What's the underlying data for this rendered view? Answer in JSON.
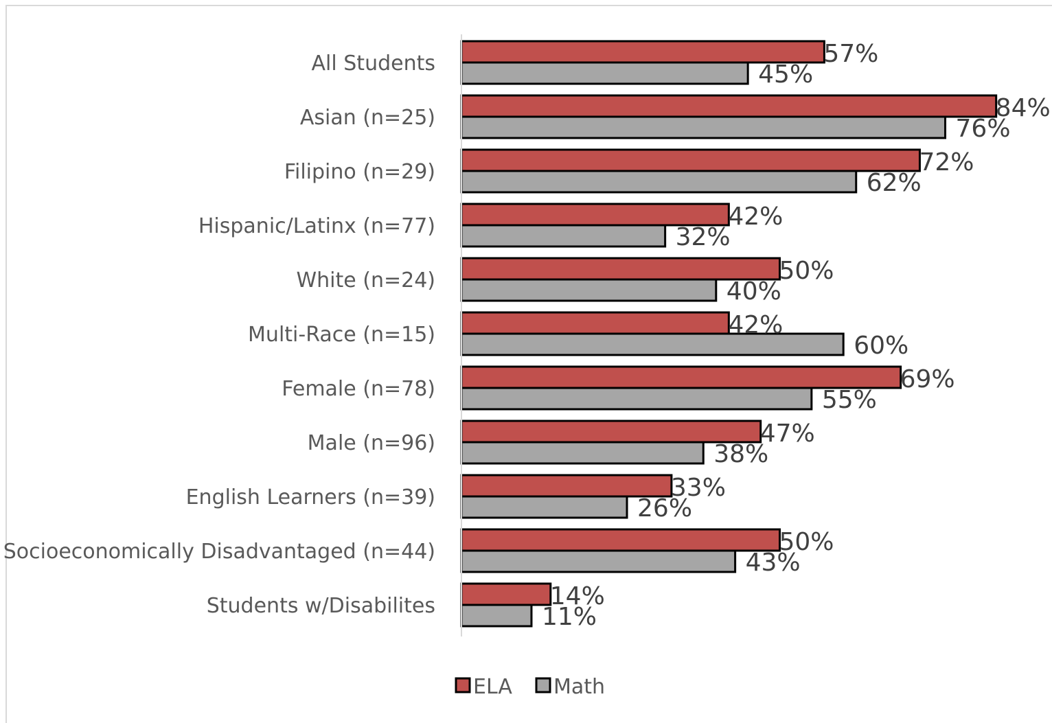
{
  "chart_data": {
    "type": "bar",
    "orientation": "horizontal",
    "title": "",
    "xlabel": "",
    "ylabel": "",
    "xlim": [
      0,
      100
    ],
    "grid": false,
    "legend_position": "bottom",
    "categories": [
      "All Students",
      "Asian (n=25)",
      "Filipino (n=29)",
      "Hispanic/Latinx (n=77)",
      "White (n=24)",
      "Multi-Race (n=15)",
      "Female (n=78)",
      "Male (n=96)",
      "English Learners (n=39)",
      "Socioeconomically Disadvantaged (n=44)",
      "Students w/Disabilites"
    ],
    "series": [
      {
        "name": "ELA",
        "color": "#c0504d",
        "values": [
          57,
          84,
          72,
          42,
          50,
          42,
          69,
          47,
          33,
          50,
          14
        ],
        "labels": [
          "57%",
          "84%",
          "72%",
          "42%",
          "50%",
          "42%",
          "69%",
          "47%",
          "33%",
          "50%",
          "14%"
        ]
      },
      {
        "name": "Math",
        "color": "#a6a6a6",
        "values": [
          45,
          76,
          62,
          32,
          40,
          60,
          55,
          38,
          26,
          43,
          11
        ],
        "labels": [
          "45%",
          "76%",
          "62%",
          "32%",
          "40%",
          "60%",
          "55%",
          "38%",
          "26%",
          "43%",
          "11%"
        ]
      }
    ]
  }
}
